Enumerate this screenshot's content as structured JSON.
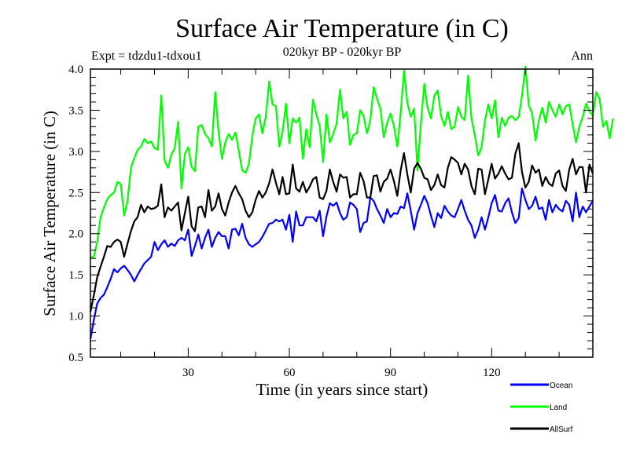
{
  "chart_data": {
    "type": "line",
    "title": "Surface Air Temperature (in C)",
    "subtitle": "020kyr BP - 020kyr BP",
    "left_annotation": "Expt = tdzdu1-tdxou1",
    "right_annotation": "Ann",
    "xlabel": "Time (in years since start)",
    "ylabel": "Surface Air Temperature (in C)",
    "xlim": [
      1,
      150
    ],
    "ylim": [
      0.5,
      4.0
    ],
    "xticks": [
      30,
      60,
      90,
      120
    ],
    "xtick_labels": [
      "30",
      "60",
      "90",
      "120"
    ],
    "yticks": [
      0.5,
      1.0,
      1.5,
      2.0,
      2.5,
      3.0,
      3.5,
      4.0
    ],
    "ytick_labels": [
      "0.5",
      "1.0",
      "1.5",
      "2.0",
      "2.5",
      "3.0",
      "3.5",
      "4.0"
    ],
    "grid": false,
    "legend_position": "bottom-right",
    "series": [
      {
        "name": "Ocean",
        "color": "#0000ff",
        "values": [
          0.72,
          0.95,
          1.15,
          1.22,
          1.26,
          1.35,
          1.45,
          1.57,
          1.53,
          1.58,
          1.61,
          1.56,
          1.5,
          1.42,
          1.5,
          1.57,
          1.64,
          1.68,
          1.72,
          1.9,
          1.8,
          1.87,
          1.92,
          1.84,
          1.88,
          1.85,
          1.92,
          1.95,
          1.92,
          2.05,
          1.73,
          1.85,
          1.99,
          1.82,
          1.95,
          2.05,
          1.84,
          1.95,
          2.02,
          1.97,
          1.97,
          1.82,
          2.05,
          2.06,
          1.98,
          2.12,
          1.95,
          1.87,
          1.84,
          1.87,
          1.9,
          1.96,
          2.04,
          2.12,
          2.13,
          2.17,
          2.15,
          2.17,
          2.05,
          2.23,
          1.9,
          2.27,
          2.1,
          2.1,
          2.2,
          2.2,
          2.2,
          2.15,
          2.28,
          1.97,
          2.21,
          2.37,
          2.34,
          2.38,
          2.25,
          2.17,
          2.2,
          2.38,
          2.35,
          2.3,
          2.02,
          2.13,
          2.15,
          2.44,
          2.4,
          2.3,
          2.22,
          2.13,
          2.3,
          2.2,
          2.25,
          2.24,
          2.33,
          2.31,
          2.49,
          2.28,
          2.05,
          2.25,
          2.35,
          2.46,
          2.37,
          2.22,
          2.08,
          2.25,
          2.19,
          2.34,
          2.27,
          2.22,
          2.2,
          2.3,
          2.41,
          2.28,
          2.17,
          2.1,
          1.95,
          2.05,
          2.2,
          2.05,
          2.2,
          2.37,
          2.47,
          2.28,
          2.27,
          2.37,
          2.43,
          2.26,
          2.13,
          2.19,
          2.55,
          2.41,
          2.3,
          2.34,
          2.45,
          2.3,
          2.32,
          2.17,
          2.41,
          2.26,
          2.35,
          2.3,
          2.27,
          2.4,
          2.35,
          2.15,
          2.5,
          2.2,
          2.33,
          2.26,
          2.33,
          2.4
        ]
      },
      {
        "name": "Land",
        "color": "#00ff00",
        "values": [
          1.71,
          1.72,
          1.9,
          2.2,
          2.32,
          2.42,
          2.47,
          2.5,
          2.63,
          2.6,
          2.22,
          2.4,
          2.8,
          2.92,
          3.02,
          3.06,
          3.15,
          3.1,
          3.12,
          3.04,
          3.02,
          3.68,
          2.89,
          2.8,
          2.96,
          3.04,
          3.36,
          2.55,
          2.97,
          3.05,
          2.81,
          2.76,
          3.3,
          3.32,
          3.21,
          3.16,
          3.06,
          3.72,
          3.23,
          2.91,
          3.11,
          3.21,
          3.14,
          3.23,
          3.01,
          2.77,
          2.74,
          2.85,
          3.19,
          3.4,
          3.45,
          3.22,
          3.42,
          3.85,
          3.57,
          3.55,
          3.06,
          3.24,
          3.58,
          3.1,
          3.4,
          3.35,
          3.41,
          2.91,
          3.27,
          3.05,
          3.63,
          3.45,
          3.31,
          2.87,
          3.45,
          3.11,
          3.21,
          3.34,
          3.75,
          3.4,
          3.48,
          3.08,
          3.2,
          3.22,
          3.5,
          3.43,
          3.22,
          3.38,
          3.78,
          3.64,
          3.52,
          3.17,
          3.35,
          3.46,
          3.31,
          3.06,
          3.47,
          3.98,
          3.59,
          3.42,
          3.52,
          2.77,
          3.34,
          3.82,
          3.52,
          3.4,
          3.68,
          3.74,
          3.43,
          3.31,
          3.48,
          3.27,
          3.3,
          3.54,
          3.42,
          3.38,
          3.92,
          3.4,
          3.2,
          2.95,
          3.05,
          3.38,
          3.57,
          3.4,
          3.62,
          3.17,
          3.41,
          3.31,
          3.41,
          3.43,
          3.38,
          3.42,
          3.68,
          4.03,
          3.56,
          3.46,
          3.13,
          3.38,
          3.53,
          3.35,
          3.6,
          3.5,
          3.42,
          3.57,
          3.45,
          3.55,
          3.57,
          3.33,
          3.11,
          3.3,
          3.42,
          3.58,
          3.49,
          3.43,
          3.72,
          3.64,
          3.3,
          3.37,
          3.16,
          3.4
        ]
      },
      {
        "name": "AllSurf",
        "color": "#000000",
        "values": [
          1.05,
          1.25,
          1.47,
          1.6,
          1.72,
          1.85,
          1.84,
          1.9,
          1.93,
          1.9,
          1.72,
          1.88,
          2.03,
          2.15,
          2.2,
          2.35,
          2.26,
          2.33,
          2.3,
          2.31,
          2.34,
          2.6,
          2.2,
          2.32,
          2.28,
          2.33,
          2.38,
          2.04,
          2.25,
          2.45,
          2.09,
          2.03,
          2.32,
          2.33,
          2.2,
          2.53,
          2.28,
          2.33,
          2.49,
          2.3,
          2.22,
          2.38,
          2.5,
          2.58,
          2.49,
          2.42,
          2.28,
          2.2,
          2.26,
          2.41,
          2.52,
          2.44,
          2.5,
          2.61,
          2.78,
          2.62,
          2.48,
          2.69,
          2.48,
          2.49,
          2.84,
          2.55,
          2.51,
          2.63,
          2.5,
          2.57,
          2.66,
          2.69,
          2.44,
          2.42,
          2.52,
          2.78,
          2.63,
          2.51,
          2.72,
          2.68,
          2.69,
          2.44,
          2.48,
          2.48,
          2.74,
          2.64,
          2.44,
          2.44,
          2.7,
          2.71,
          2.51,
          2.63,
          2.67,
          2.78,
          2.64,
          2.46,
          2.77,
          2.98,
          2.72,
          2.5,
          2.79,
          2.86,
          2.79,
          2.68,
          2.66,
          2.53,
          2.59,
          2.72,
          2.59,
          2.56,
          2.8,
          2.93,
          2.9,
          2.86,
          2.72,
          2.85,
          2.78,
          2.58,
          2.48,
          2.79,
          2.78,
          2.48,
          2.66,
          2.85,
          2.67,
          2.73,
          2.82,
          2.73,
          2.66,
          2.68,
          2.97,
          3.1,
          2.75,
          2.56,
          2.63,
          2.83,
          2.74,
          2.78,
          2.58,
          2.69,
          2.61,
          2.58,
          2.73,
          2.77,
          2.58,
          2.52,
          2.78,
          2.91,
          2.72,
          2.81,
          2.81,
          2.5,
          2.84,
          2.73
        ]
      }
    ]
  }
}
